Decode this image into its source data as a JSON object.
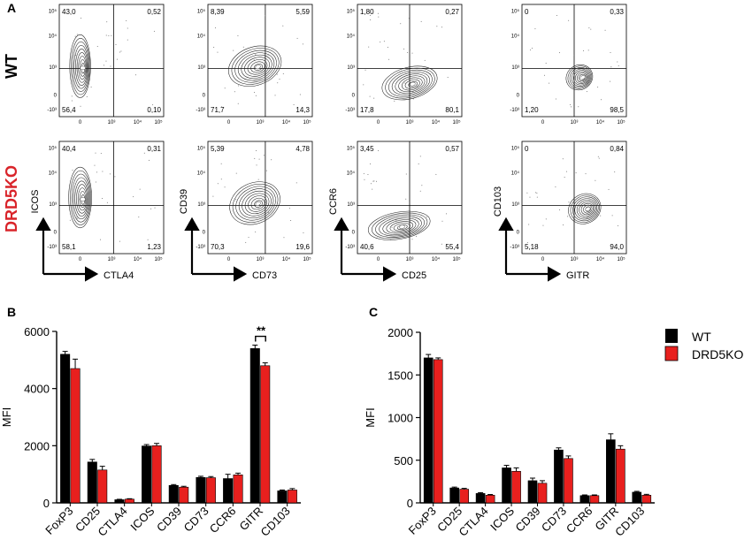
{
  "panel_letters": {
    "a": "A",
    "b": "B",
    "c": "C"
  },
  "colors": {
    "wt": "#000000",
    "ko": "#e8201e",
    "ko_label": "#d9242a",
    "axis": "#000000"
  },
  "chart_data": [
    {
      "id": "A",
      "type": "contour-flow-grid",
      "row_labels": [
        "WT",
        "DRD5KO"
      ],
      "x_labels": [
        "CTLA4",
        "CD73",
        "CD25",
        "GITR"
      ],
      "y_labels": [
        "ICOS",
        "CD39",
        "CCR6",
        "CD103"
      ],
      "tick_labels": {
        "x": [
          "0",
          "10³",
          "10⁴",
          "10⁵"
        ],
        "y": [
          "10⁵",
          "10⁴",
          "10³",
          "0",
          "-10³"
        ]
      },
      "quadrants": {
        "WT": [
          {
            "tl": "43,0",
            "tr": "0,52",
            "bl": "56,4",
            "br": "0,10"
          },
          {
            "tl": "8,39",
            "tr": "5,59",
            "bl": "71,7",
            "br": "14,3"
          },
          {
            "tl": "1,80",
            "tr": "0,27",
            "bl": "17,8",
            "br": "80,1"
          },
          {
            "tl": "0",
            "tr": "0,33",
            "bl": "1,20",
            "br": "98,5"
          }
        ],
        "DRD5KO": [
          {
            "tl": "40,4",
            "tr": "0,31",
            "bl": "58,1",
            "br": "1,23"
          },
          {
            "tl": "5,39",
            "tr": "4,78",
            "bl": "70,3",
            "br": "19,6"
          },
          {
            "tl": "3,45",
            "tr": "0,57",
            "bl": "40,6",
            "br": "55,4"
          },
          {
            "tl": "0",
            "tr": "0,84",
            "bl": "5,18",
            "br": "94,0"
          }
        ]
      }
    },
    {
      "id": "B",
      "type": "bar",
      "ylabel": "MFI",
      "ylim": [
        0,
        6000
      ],
      "yticks": [
        0,
        2000,
        4000,
        6000
      ],
      "categories": [
        "FoxP3",
        "CD25",
        "CTLA4",
        "ICOS",
        "CD39",
        "CD73",
        "CCR6",
        "GITR",
        "CD103"
      ],
      "series": [
        {
          "name": "WT",
          "values": [
            5200,
            1430,
            110,
            1990,
            610,
            890,
            850,
            5400,
            420
          ],
          "errors": [
            100,
            90,
            15,
            50,
            30,
            40,
            150,
            120,
            30
          ]
        },
        {
          "name": "DRD5KO",
          "values": [
            4700,
            1150,
            130,
            2000,
            550,
            880,
            980,
            4800,
            450
          ],
          "errors": [
            330,
            130,
            15,
            80,
            30,
            40,
            60,
            100,
            50
          ]
        }
      ],
      "annotation": {
        "text": "**",
        "category": "GITR"
      }
    },
    {
      "id": "C",
      "type": "bar",
      "ylabel": "MFI",
      "ylim": [
        0,
        2000
      ],
      "yticks": [
        0,
        500,
        1000,
        1500,
        2000
      ],
      "categories": [
        "FoxP3",
        "CD25",
        "CTLA4",
        "ICOS",
        "CD39",
        "CD73",
        "CCR6",
        "GITR",
        "CD103"
      ],
      "series": [
        {
          "name": "WT",
          "values": [
            1700,
            175,
            110,
            410,
            260,
            620,
            85,
            740,
            125
          ],
          "errors": [
            40,
            10,
            10,
            30,
            30,
            25,
            8,
            70,
            10
          ]
        },
        {
          "name": "DRD5KO",
          "values": [
            1680,
            160,
            90,
            370,
            230,
            520,
            85,
            630,
            90
          ],
          "errors": [
            20,
            10,
            8,
            40,
            30,
            30,
            8,
            40,
            10
          ]
        }
      ]
    }
  ],
  "legend": {
    "items": [
      "WT",
      "DRD5KO"
    ]
  }
}
